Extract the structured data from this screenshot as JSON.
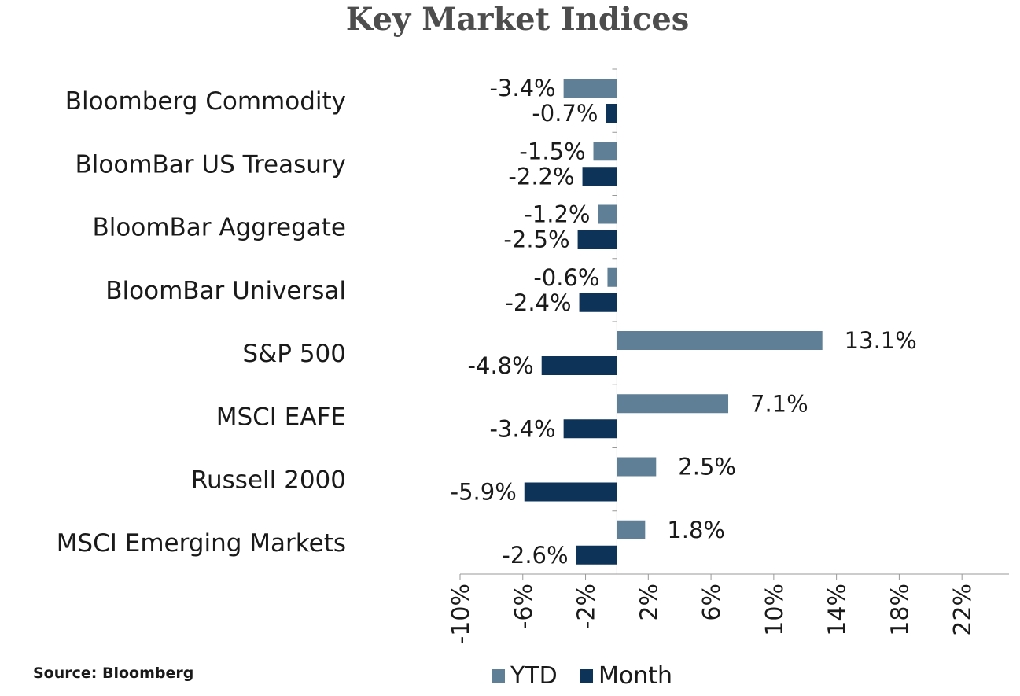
{
  "chart_data": {
    "type": "bar",
    "orientation": "horizontal",
    "title": "Key Market Indices",
    "categories": [
      "Bloomberg Commodity",
      "BloomBar US Treasury",
      "BloomBar Aggregate",
      "BloomBar Universal",
      "S&P 500",
      "MSCI EAFE",
      "Russell 2000",
      "MSCI Emerging Markets"
    ],
    "series": [
      {
        "name": "YTD",
        "color": "#5e7f96",
        "values": [
          -3.4,
          -1.5,
          -1.2,
          -0.6,
          13.1,
          7.1,
          2.5,
          1.8
        ],
        "labels": [
          "-3.4%",
          "-1.5%",
          "-1.2%",
          "-0.6%",
          "13.1%",
          "7.1%",
          "2.5%",
          "1.8%"
        ]
      },
      {
        "name": "Month",
        "color": "#0d3358",
        "values": [
          -0.7,
          -2.2,
          -2.5,
          -2.4,
          -4.8,
          -3.4,
          -5.9,
          -2.6
        ],
        "labels": [
          "-0.7%",
          "-2.2%",
          "-2.5%",
          "-2.4%",
          "-4.8%",
          "-3.4%",
          "-5.9%",
          "-2.6%"
        ]
      }
    ],
    "xlim": [
      -10,
      25
    ],
    "ticks": [
      -10,
      -6,
      -2,
      2,
      6,
      10,
      14,
      18,
      22
    ],
    "tick_labels": [
      "-10%",
      "-6%",
      "-2%",
      "2%",
      "6%",
      "10%",
      "14%",
      "18%",
      "22%"
    ],
    "legend_position": "bottom",
    "grid": false
  },
  "source": "Source: Bloomberg"
}
